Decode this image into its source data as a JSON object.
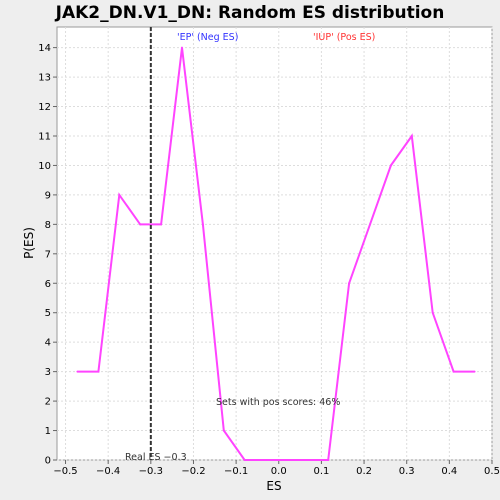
{
  "chart_data": {
    "type": "line",
    "title": "JAK2_DN.V1_DN: Random ES distribution",
    "xlabel": "ES",
    "ylabel": "P(ES)",
    "xlim": [
      -0.52,
      0.5
    ],
    "ylim": [
      0,
      14.7
    ],
    "xticks": [
      -0.5,
      -0.4,
      -0.3,
      -0.2,
      -0.1,
      0.0,
      0.1,
      0.2,
      0.3,
      0.4,
      0.5
    ],
    "xtick_labels": [
      "−0.5",
      "−0.4",
      "−0.3",
      "−0.2",
      "−0.1",
      "0.0",
      "0.1",
      "0.2",
      "0.3",
      "0.4",
      "0.5"
    ],
    "yticks": [
      0,
      1,
      2,
      3,
      4,
      5,
      6,
      7,
      8,
      9,
      10,
      11,
      12,
      13,
      14
    ],
    "grid": true,
    "series": [
      {
        "color": "#ff44ff",
        "x": [
          -0.472,
          -0.423,
          -0.374,
          -0.325,
          -0.276,
          -0.227,
          -0.178,
          -0.129,
          -0.08,
          -0.031,
          0.018,
          0.067,
          0.116,
          0.165,
          0.214,
          0.263,
          0.312,
          0.361,
          0.41,
          0.459
        ],
        "y": [
          3,
          3,
          9,
          8,
          8,
          14,
          8,
          1,
          0,
          0,
          0,
          0,
          0,
          6,
          8,
          10,
          11,
          5,
          3,
          3
        ]
      }
    ],
    "real_es": -0.3,
    "real_es_label": "Real ES −0.3",
    "neg_label": "'EP' (Neg ES)",
    "pos_label": "'IUP' (Pos ES)",
    "pos_scores_label": "Sets with pos scores: 46%",
    "colors": {
      "neg": "#3333ff",
      "pos": "#ff3333",
      "line": "#ff44ff",
      "real_es_line": "#333333"
    }
  }
}
